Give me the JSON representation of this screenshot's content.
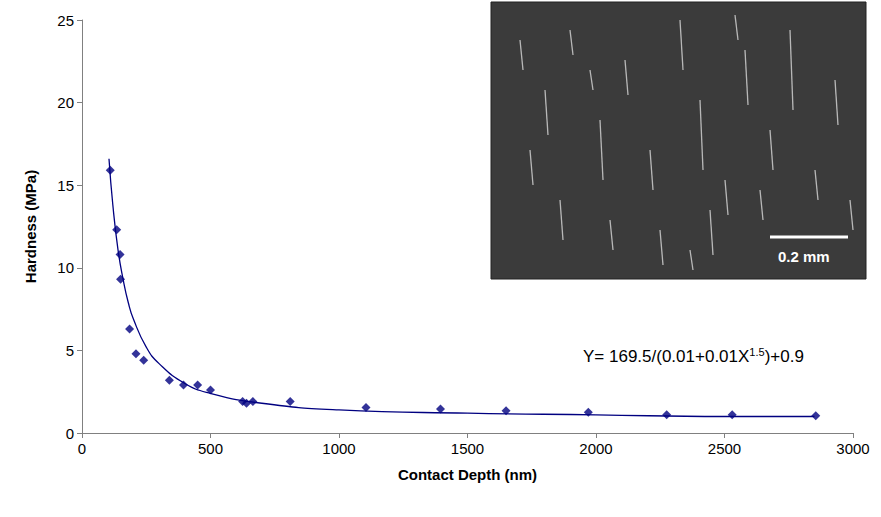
{
  "chart_data": {
    "type": "scatter",
    "x_label": "Contact Depth (nm)",
    "y_label": "Hardness (MPa)",
    "xlim": [
      0,
      3000
    ],
    "xticks": [
      0,
      500,
      1000,
      1500,
      2000,
      2500,
      3000
    ],
    "ylim": [
      0,
      25
    ],
    "yticks": [
      0,
      5,
      10,
      15,
      20,
      25
    ],
    "grid": false,
    "series": [
      {
        "type": "scatter",
        "marker": "diamond",
        "color": "#000080",
        "x": [
          110,
          135,
          148,
          150,
          185,
          210,
          240,
          340,
          395,
          450,
          500,
          625,
          640,
          665,
          810,
          1105,
          1395,
          1650,
          1970,
          2275,
          2530,
          2855
        ],
        "values": [
          15.9,
          12.3,
          10.8,
          9.3,
          6.3,
          4.8,
          4.4,
          3.2,
          2.9,
          2.9,
          2.6,
          1.9,
          1.8,
          1.9,
          1.9,
          1.55,
          1.45,
          1.35,
          1.25,
          1.1,
          1.1,
          1.05
        ]
      },
      {
        "type": "line",
        "line_style": "solid",
        "color": "#000080",
        "x": [
          105,
          120,
          140,
          160,
          180,
          200,
          250,
          300,
          400,
          500,
          700,
          1000,
          1500,
          2000,
          2500,
          2850
        ],
        "values": [
          16.6,
          13.8,
          11.1,
          9.3,
          7.9,
          6.9,
          5.2,
          4.2,
          3.0,
          2.4,
          1.8,
          1.4,
          1.2,
          1.1,
          1.0,
          1.0
        ]
      }
    ],
    "equation": {
      "base": "Y= 169.5/(0.01+0.01X",
      "exponent": "1.5",
      "rest": ")+0.9"
    },
    "inset": {
      "scale_bar": "0.2 mm"
    }
  }
}
